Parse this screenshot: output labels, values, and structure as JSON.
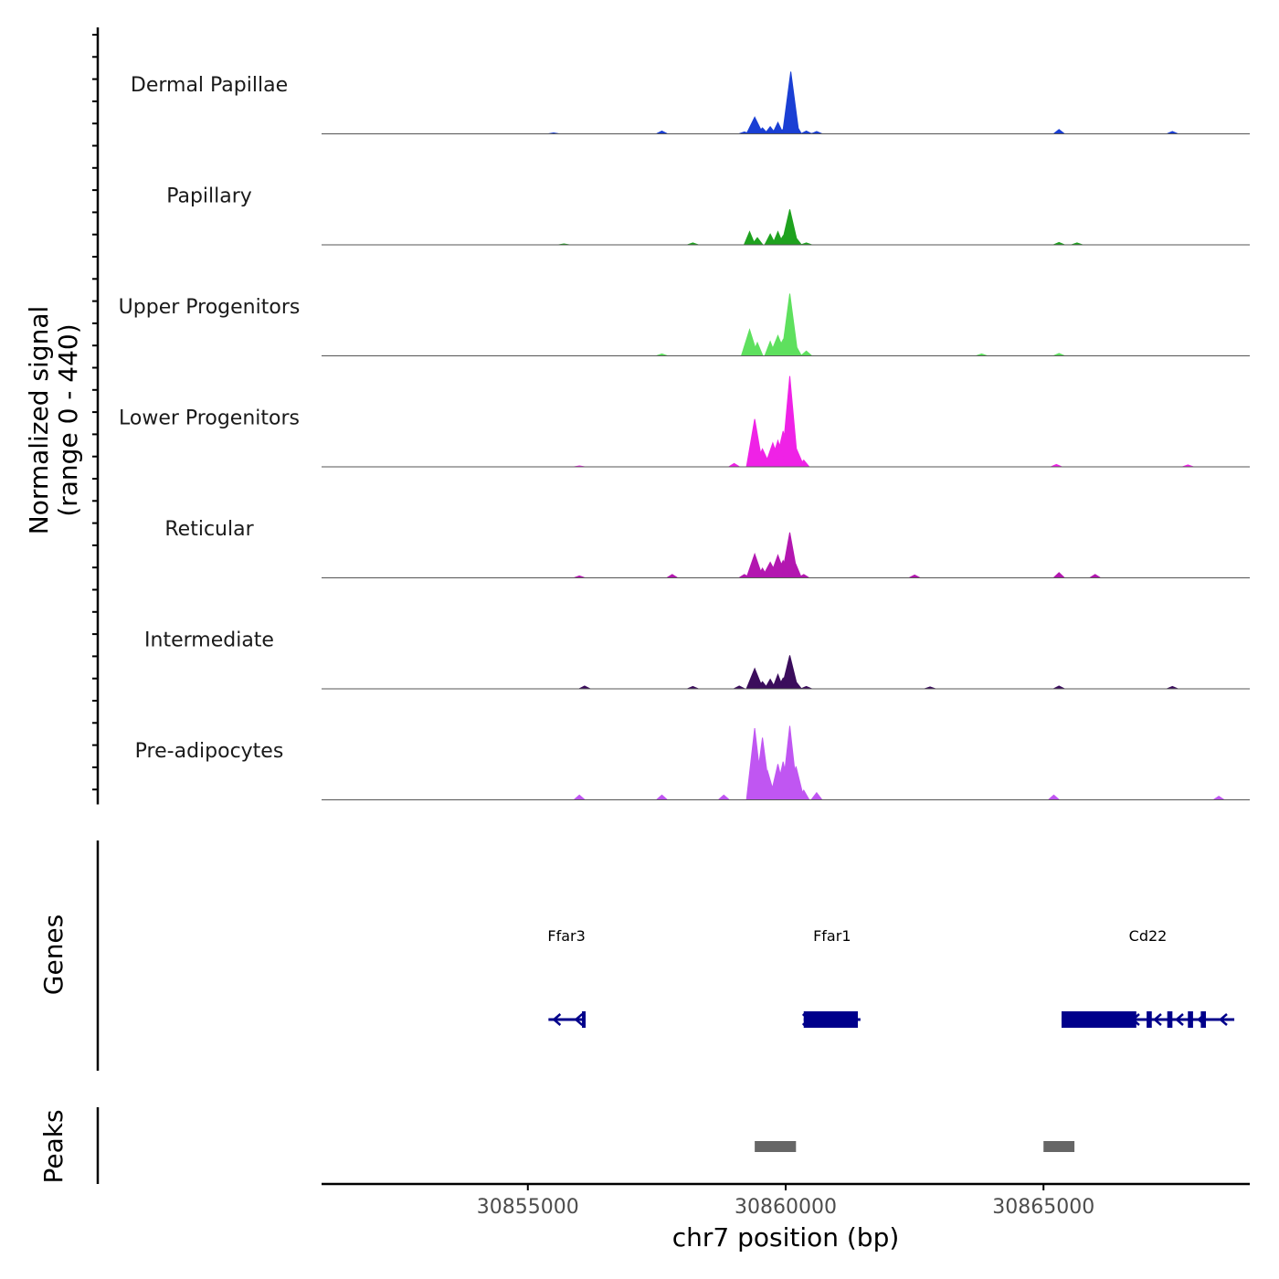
{
  "chart_data": {
    "type": "area",
    "title": "",
    "ylabel_line1": "Normalized signal",
    "ylabel_line2": "(range 0 - 440)",
    "xlabel": "chr7 position (bp)",
    "xlim": [
      30851000,
      30869000
    ],
    "ylim": [
      0,
      440
    ],
    "x_ticks": [
      {
        "value": 30855000,
        "label": "30855000"
      },
      {
        "value": 30860000,
        "label": "30860000"
      },
      {
        "value": 30865000,
        "label": "30865000"
      }
    ],
    "series": [
      {
        "name": "Dermal Papillae",
        "color": "#1a3fd4",
        "points": [
          [
            30855500,
            4
          ],
          [
            30857600,
            12
          ],
          [
            30859200,
            8
          ],
          [
            30859400,
            70
          ],
          [
            30859550,
            25
          ],
          [
            30859700,
            30
          ],
          [
            30859850,
            48
          ],
          [
            30860000,
            38
          ],
          [
            30860100,
            260
          ],
          [
            30860200,
            40
          ],
          [
            30860400,
            12
          ],
          [
            30860600,
            10
          ],
          [
            30865300,
            18
          ],
          [
            30867500,
            10
          ]
        ]
      },
      {
        "name": "Papillary",
        "color": "#1fa21f",
        "points": [
          [
            30855700,
            4
          ],
          [
            30858200,
            8
          ],
          [
            30859300,
            55
          ],
          [
            30859450,
            30
          ],
          [
            30859700,
            45
          ],
          [
            30859850,
            55
          ],
          [
            30859950,
            38
          ],
          [
            30860080,
            148
          ],
          [
            30860200,
            30
          ],
          [
            30860400,
            8
          ],
          [
            30865300,
            10
          ],
          [
            30865650,
            8
          ]
        ]
      },
      {
        "name": "Upper Progenitors",
        "color": "#5ee05e",
        "points": [
          [
            30857600,
            8
          ],
          [
            30859300,
            110
          ],
          [
            30859450,
            55
          ],
          [
            30859700,
            60
          ],
          [
            30859850,
            85
          ],
          [
            30859950,
            68
          ],
          [
            30860080,
            260
          ],
          [
            30860200,
            42
          ],
          [
            30860400,
            20
          ],
          [
            30863800,
            8
          ],
          [
            30865300,
            10
          ]
        ]
      },
      {
        "name": "Lower Progenitors",
        "color": "#ef22e6",
        "points": [
          [
            30856000,
            4
          ],
          [
            30859000,
            14
          ],
          [
            30859400,
            200
          ],
          [
            30859550,
            75
          ],
          [
            30859750,
            100
          ],
          [
            30859850,
            110
          ],
          [
            30859950,
            150
          ],
          [
            30860080,
            380
          ],
          [
            30860200,
            80
          ],
          [
            30860350,
            28
          ],
          [
            30865250,
            10
          ],
          [
            30867800,
            8
          ]
        ]
      },
      {
        "name": "Reticular",
        "color": "#b317b0",
        "points": [
          [
            30856000,
            8
          ],
          [
            30857800,
            14
          ],
          [
            30859200,
            14
          ],
          [
            30859400,
            100
          ],
          [
            30859550,
            40
          ],
          [
            30859700,
            65
          ],
          [
            30859850,
            95
          ],
          [
            30859950,
            72
          ],
          [
            30860080,
            190
          ],
          [
            30860200,
            55
          ],
          [
            30860350,
            14
          ],
          [
            30862500,
            12
          ],
          [
            30865300,
            22
          ],
          [
            30866000,
            14
          ]
        ]
      },
      {
        "name": "Intermediate",
        "color": "#3b0d5c",
        "points": [
          [
            30856100,
            12
          ],
          [
            30858200,
            10
          ],
          [
            30859100,
            12
          ],
          [
            30859400,
            85
          ],
          [
            30859550,
            30
          ],
          [
            30859700,
            40
          ],
          [
            30859850,
            60
          ],
          [
            30859950,
            45
          ],
          [
            30860080,
            140
          ],
          [
            30860200,
            30
          ],
          [
            30860400,
            10
          ],
          [
            30862800,
            8
          ],
          [
            30865300,
            12
          ],
          [
            30867500,
            10
          ]
        ]
      },
      {
        "name": "Pre-adipocytes",
        "color": "#c056f2",
        "points": [
          [
            30856000,
            20
          ],
          [
            30857600,
            20
          ],
          [
            30858800,
            20
          ],
          [
            30859400,
            300
          ],
          [
            30859550,
            260
          ],
          [
            30859650,
            120
          ],
          [
            30859850,
            150
          ],
          [
            30859950,
            160
          ],
          [
            30860080,
            310
          ],
          [
            30860200,
            140
          ],
          [
            30860350,
            40
          ],
          [
            30860600,
            30
          ],
          [
            30865200,
            20
          ],
          [
            30868400,
            15
          ]
        ]
      }
    ],
    "genes": [
      {
        "name": "Ffar3",
        "start": 30855400,
        "end": 30856100,
        "strand": "-",
        "color": "#00008b",
        "exons": [
          [
            30856050,
            30856100
          ]
        ]
      },
      {
        "name": "Ffar1",
        "start": 30860350,
        "end": 30861450,
        "strand": "+",
        "color": "#00008b",
        "exons": [
          [
            30860350,
            30861400
          ]
        ]
      },
      {
        "name": "Cd22",
        "start": 30865350,
        "end": 30868700,
        "strand": "-",
        "color": "#00008b",
        "exons": [
          [
            30865350,
            30866800
          ],
          [
            30867000,
            30867100
          ],
          [
            30867400,
            30867500
          ],
          [
            30867800,
            30867900
          ],
          [
            30868050,
            30868150
          ]
        ]
      }
    ],
    "peaks": [
      {
        "start": 30859400,
        "end": 30860200
      },
      {
        "start": 30865000,
        "end": 30865600
      }
    ],
    "peaks_color": "#666666",
    "panel_labels": {
      "genes": "Genes",
      "peaks": "Peaks"
    }
  }
}
